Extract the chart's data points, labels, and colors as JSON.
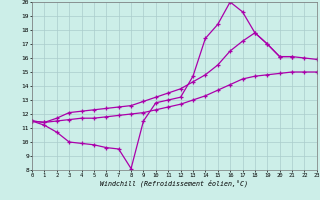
{
  "xlabel": "Windchill (Refroidissement éolien,°C)",
  "xlim": [
    0,
    23
  ],
  "ylim": [
    8,
    20
  ],
  "yticks": [
    8,
    9,
    10,
    11,
    12,
    13,
    14,
    15,
    16,
    17,
    18,
    19,
    20
  ],
  "xticks": [
    0,
    1,
    2,
    3,
    4,
    5,
    6,
    7,
    8,
    9,
    10,
    11,
    12,
    13,
    14,
    15,
    16,
    17,
    18,
    19,
    20,
    21,
    22,
    23
  ],
  "bg_color": "#cceee8",
  "grid_color": "#aacccc",
  "line_color": "#aa00aa",
  "line1_x": [
    0,
    1,
    2,
    3,
    4,
    5,
    6,
    7,
    8,
    9,
    10,
    11,
    12,
    13,
    14,
    15,
    16,
    17,
    18,
    19,
    20,
    21
  ],
  "line1_y": [
    11.5,
    11.2,
    10.7,
    10.0,
    9.9,
    9.8,
    9.6,
    9.5,
    8.1,
    11.5,
    12.8,
    13.0,
    13.2,
    14.7,
    17.4,
    18.4,
    20.0,
    19.3,
    17.8,
    17.0,
    16.1,
    16.1
  ],
  "line2_x": [
    0,
    1,
    2,
    3,
    4,
    5,
    6,
    7,
    8,
    9,
    10,
    11,
    12,
    13,
    14,
    15,
    16,
    17,
    18,
    19,
    20,
    21,
    22,
    23
  ],
  "line2_y": [
    11.5,
    11.4,
    11.7,
    12.1,
    12.2,
    12.3,
    12.4,
    12.5,
    12.6,
    12.9,
    13.2,
    13.5,
    13.8,
    14.3,
    14.8,
    15.5,
    16.5,
    17.2,
    17.8,
    17.0,
    16.1,
    16.1,
    16.0,
    15.9
  ],
  "line3_x": [
    0,
    1,
    2,
    3,
    4,
    5,
    6,
    7,
    8,
    9,
    10,
    11,
    12,
    13,
    14,
    15,
    16,
    17,
    18,
    19,
    20,
    21,
    22,
    23
  ],
  "line3_y": [
    11.5,
    11.4,
    11.5,
    11.6,
    11.7,
    11.7,
    11.8,
    11.9,
    12.0,
    12.1,
    12.3,
    12.5,
    12.7,
    13.0,
    13.3,
    13.7,
    14.1,
    14.5,
    14.7,
    14.8,
    14.9,
    15.0,
    15.0,
    15.0
  ]
}
